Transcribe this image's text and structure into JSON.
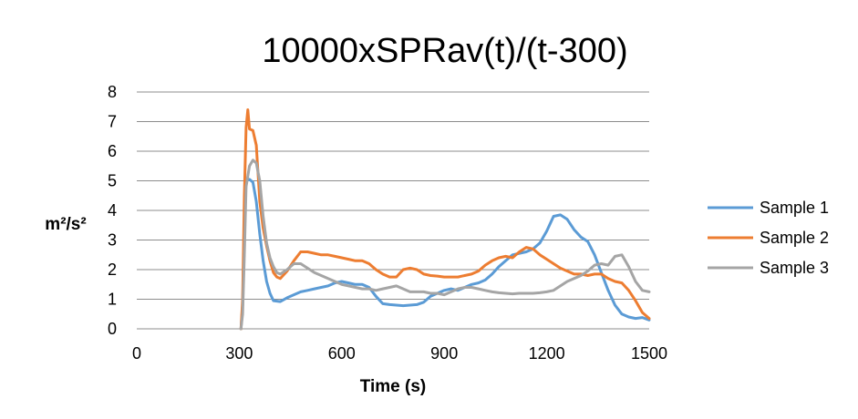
{
  "chart_data": {
    "type": "line",
    "title": "10000xSPRav(t)/(t-300)",
    "xlabel": "Time (s)",
    "ylabel": "m²/s²",
    "xlim": [
      0,
      1500
    ],
    "ylim": [
      0,
      8
    ],
    "x_ticks": [
      0,
      300,
      600,
      900,
      1200,
      1500
    ],
    "y_ticks": [
      0,
      1,
      2,
      3,
      4,
      5,
      6,
      7,
      8
    ],
    "grid": true,
    "legend_position": "right",
    "series": [
      {
        "name": "Sample 1",
        "color": "#5b9bd5",
        "x": [
          305,
          310,
          315,
          320,
          330,
          340,
          350,
          360,
          370,
          380,
          390,
          400,
          420,
          440,
          460,
          480,
          500,
          520,
          540,
          560,
          580,
          600,
          620,
          640,
          660,
          680,
          700,
          720,
          740,
          760,
          780,
          800,
          820,
          840,
          860,
          880,
          900,
          920,
          940,
          960,
          980,
          1000,
          1020,
          1040,
          1060,
          1080,
          1100,
          1120,
          1140,
          1160,
          1180,
          1200,
          1220,
          1240,
          1260,
          1280,
          1300,
          1320,
          1340,
          1360,
          1380,
          1400,
          1420,
          1440,
          1460,
          1480,
          1500
        ],
        "values": [
          0.0,
          0.8,
          3.5,
          5.0,
          5.05,
          4.95,
          4.3,
          3.2,
          2.3,
          1.6,
          1.2,
          0.95,
          0.92,
          1.05,
          1.15,
          1.25,
          1.3,
          1.35,
          1.4,
          1.45,
          1.55,
          1.6,
          1.55,
          1.5,
          1.5,
          1.4,
          1.1,
          0.85,
          0.82,
          0.8,
          0.78,
          0.8,
          0.82,
          0.9,
          1.1,
          1.2,
          1.3,
          1.35,
          1.3,
          1.4,
          1.5,
          1.55,
          1.65,
          1.85,
          2.1,
          2.3,
          2.5,
          2.55,
          2.6,
          2.7,
          2.9,
          3.3,
          3.8,
          3.85,
          3.7,
          3.35,
          3.1,
          2.95,
          2.5,
          1.9,
          1.3,
          0.8,
          0.5,
          0.4,
          0.35,
          0.38,
          0.3
        ]
      },
      {
        "name": "Sample 2",
        "color": "#ed7d31",
        "x": [
          305,
          310,
          315,
          320,
          325,
          330,
          340,
          350,
          360,
          370,
          380,
          390,
          400,
          410,
          420,
          440,
          460,
          480,
          500,
          520,
          540,
          560,
          580,
          600,
          620,
          640,
          660,
          680,
          700,
          720,
          740,
          760,
          780,
          800,
          820,
          840,
          860,
          880,
          900,
          920,
          940,
          960,
          980,
          1000,
          1020,
          1040,
          1060,
          1080,
          1100,
          1120,
          1140,
          1160,
          1180,
          1200,
          1220,
          1240,
          1260,
          1280,
          1300,
          1320,
          1340,
          1360,
          1380,
          1400,
          1420,
          1440,
          1460,
          1480,
          1500
        ],
        "values": [
          0.0,
          1.0,
          4.5,
          6.8,
          7.4,
          6.75,
          6.7,
          6.2,
          4.3,
          3.4,
          2.8,
          2.3,
          1.9,
          1.75,
          1.7,
          1.95,
          2.3,
          2.6,
          2.6,
          2.55,
          2.5,
          2.5,
          2.45,
          2.4,
          2.35,
          2.3,
          2.3,
          2.2,
          2.0,
          1.85,
          1.75,
          1.75,
          2.0,
          2.05,
          2.0,
          1.85,
          1.8,
          1.78,
          1.75,
          1.75,
          1.75,
          1.8,
          1.85,
          1.95,
          2.15,
          2.3,
          2.4,
          2.45,
          2.4,
          2.6,
          2.75,
          2.7,
          2.5,
          2.35,
          2.2,
          2.05,
          1.95,
          1.85,
          1.85,
          1.8,
          1.85,
          1.85,
          1.7,
          1.6,
          1.55,
          1.3,
          0.95,
          0.55,
          0.35
        ]
      },
      {
        "name": "Sample 3",
        "color": "#a5a5a5",
        "x": [
          305,
          310,
          315,
          320,
          330,
          340,
          350,
          360,
          370,
          380,
          390,
          400,
          410,
          420,
          440,
          460,
          480,
          500,
          520,
          540,
          560,
          580,
          600,
          620,
          640,
          660,
          680,
          700,
          720,
          740,
          760,
          780,
          800,
          820,
          840,
          860,
          880,
          900,
          920,
          940,
          960,
          980,
          1000,
          1020,
          1040,
          1060,
          1080,
          1100,
          1120,
          1140,
          1160,
          1180,
          1200,
          1220,
          1240,
          1260,
          1280,
          1300,
          1320,
          1340,
          1360,
          1380,
          1400,
          1420,
          1440,
          1460,
          1480,
          1500
        ],
        "values": [
          0.0,
          0.5,
          2.5,
          4.8,
          5.5,
          5.7,
          5.6,
          5.0,
          3.8,
          2.9,
          2.4,
          2.1,
          1.9,
          1.85,
          2.0,
          2.2,
          2.2,
          2.05,
          1.9,
          1.8,
          1.7,
          1.6,
          1.5,
          1.45,
          1.4,
          1.35,
          1.35,
          1.3,
          1.35,
          1.4,
          1.45,
          1.35,
          1.25,
          1.25,
          1.25,
          1.2,
          1.2,
          1.15,
          1.25,
          1.35,
          1.4,
          1.4,
          1.35,
          1.3,
          1.25,
          1.22,
          1.2,
          1.18,
          1.2,
          1.2,
          1.2,
          1.22,
          1.25,
          1.3,
          1.45,
          1.6,
          1.7,
          1.8,
          1.95,
          2.15,
          2.2,
          2.15,
          2.45,
          2.5,
          2.1,
          1.6,
          1.3,
          1.25
        ]
      }
    ]
  }
}
